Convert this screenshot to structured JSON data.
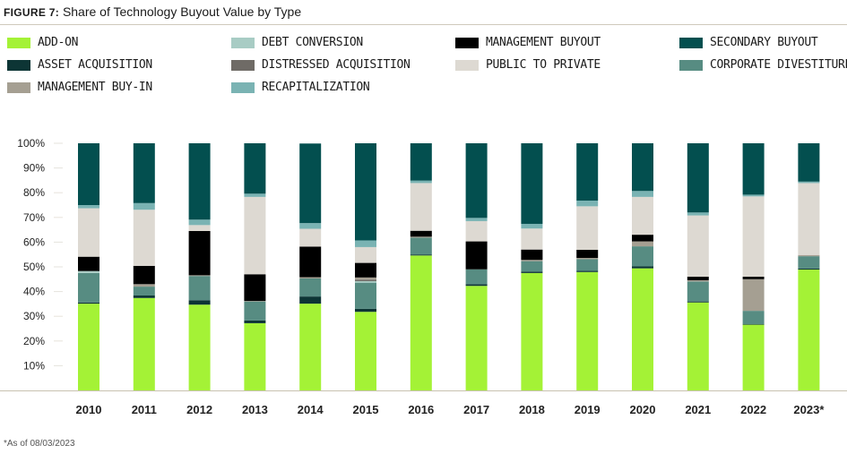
{
  "title_prefix": "FIGURE 7:",
  "title": "Share of Technology Buyout Value by Type",
  "footnote": "*As of 08/03/2023",
  "chart_data": {
    "type": "bar",
    "stacked": true,
    "title": "Share of Technology Buyout Value by Type",
    "ylim": [
      0,
      100
    ],
    "yticks": [
      "10%",
      "20%",
      "30%",
      "40%",
      "50%",
      "60%",
      "70%",
      "80%",
      "90%",
      "100%"
    ],
    "grid": false,
    "legend_placement": "top",
    "categories": [
      "2010",
      "2011",
      "2012",
      "2013",
      "2014",
      "2015",
      "2016",
      "2017",
      "2018",
      "2019",
      "2020",
      "2021",
      "2022",
      "2023*"
    ],
    "series": [
      {
        "name": "ADD-ON",
        "color": "#A4F236",
        "values": [
          35.1,
          37.4,
          34.7,
          27.2,
          35.1,
          31.8,
          54.6,
          42.3,
          47.5,
          47.9,
          49.4,
          35.6,
          26.6,
          48.9
        ]
      },
      {
        "name": "ASSET ACQUISITION",
        "color": "#0D3535",
        "values": [
          0.5,
          1.0,
          1.8,
          1.1,
          2.9,
          1.2,
          0.4,
          0.7,
          0.6,
          0.5,
          0.8,
          0.4,
          0.2,
          0.4
        ]
      },
      {
        "name": "CORPORATE DIVESTITURE",
        "color": "#578C82",
        "values": [
          11.9,
          3.6,
          9.8,
          7.7,
          7.3,
          10.6,
          6.8,
          6.0,
          4.2,
          4.7,
          8.1,
          8.1,
          5.4,
          5.0
        ]
      },
      {
        "name": "DEBT CONVERSION",
        "color": "#A8CCC4",
        "values": [
          0.8,
          0,
          0,
          0,
          0,
          0.6,
          0,
          0,
          0,
          0,
          0,
          0,
          0,
          0
        ]
      },
      {
        "name": "DISTRESSED ACQUISITION",
        "color": "#6F6B66",
        "values": [
          0,
          0,
          0,
          0,
          0,
          0.6,
          0,
          0,
          0,
          0,
          0,
          0,
          0,
          0
        ]
      },
      {
        "name": "MANAGEMENT BUY-IN",
        "color": "#A59F92",
        "values": [
          0,
          1.0,
          0.3,
          0.2,
          0.5,
          0.9,
          0.4,
          0,
          0.5,
          0.5,
          2.0,
          0.5,
          12.8,
          0.5
        ]
      },
      {
        "name": "MANAGEMENT BUYOUT",
        "color": "#000000",
        "values": [
          5.8,
          7.4,
          17.9,
          10.8,
          12.4,
          5.9,
          2.4,
          11.3,
          4.2,
          3.3,
          2.7,
          1.4,
          1.0,
          0
        ]
      },
      {
        "name": "PUBLIC TO PRIVATE",
        "color": "#DDD9D2",
        "values": [
          19.6,
          22.7,
          2.4,
          31.3,
          7.2,
          6.4,
          19.3,
          8.2,
          8.5,
          17.6,
          15.3,
          24.8,
          32.5,
          29.1
        ]
      },
      {
        "name": "RECAPITALIZATION",
        "color": "#7AB3B3",
        "values": [
          1.3,
          2.7,
          2.2,
          1.3,
          2.3,
          2.7,
          1.0,
          1.3,
          1.9,
          2.3,
          2.4,
          1.2,
          0.7,
          0.6
        ]
      },
      {
        "name": "SECONDARY BUYOUT",
        "color": "#034F4F",
        "values": [
          25.0,
          24.2,
          30.9,
          20.4,
          32.2,
          39.3,
          15.1,
          30.2,
          32.6,
          23.2,
          19.3,
          28.0,
          20.8,
          15.5
        ]
      }
    ],
    "legend_order": [
      "ADD-ON",
      "DEBT CONVERSION",
      "MANAGEMENT BUYOUT",
      "SECONDARY BUYOUT",
      "ASSET ACQUISITION",
      "DISTRESSED ACQUISITION",
      "PUBLIC TO PRIVATE",
      "CORPORATE DIVESTITURE",
      "MANAGEMENT BUY-IN",
      "RECAPITALIZATION"
    ]
  }
}
